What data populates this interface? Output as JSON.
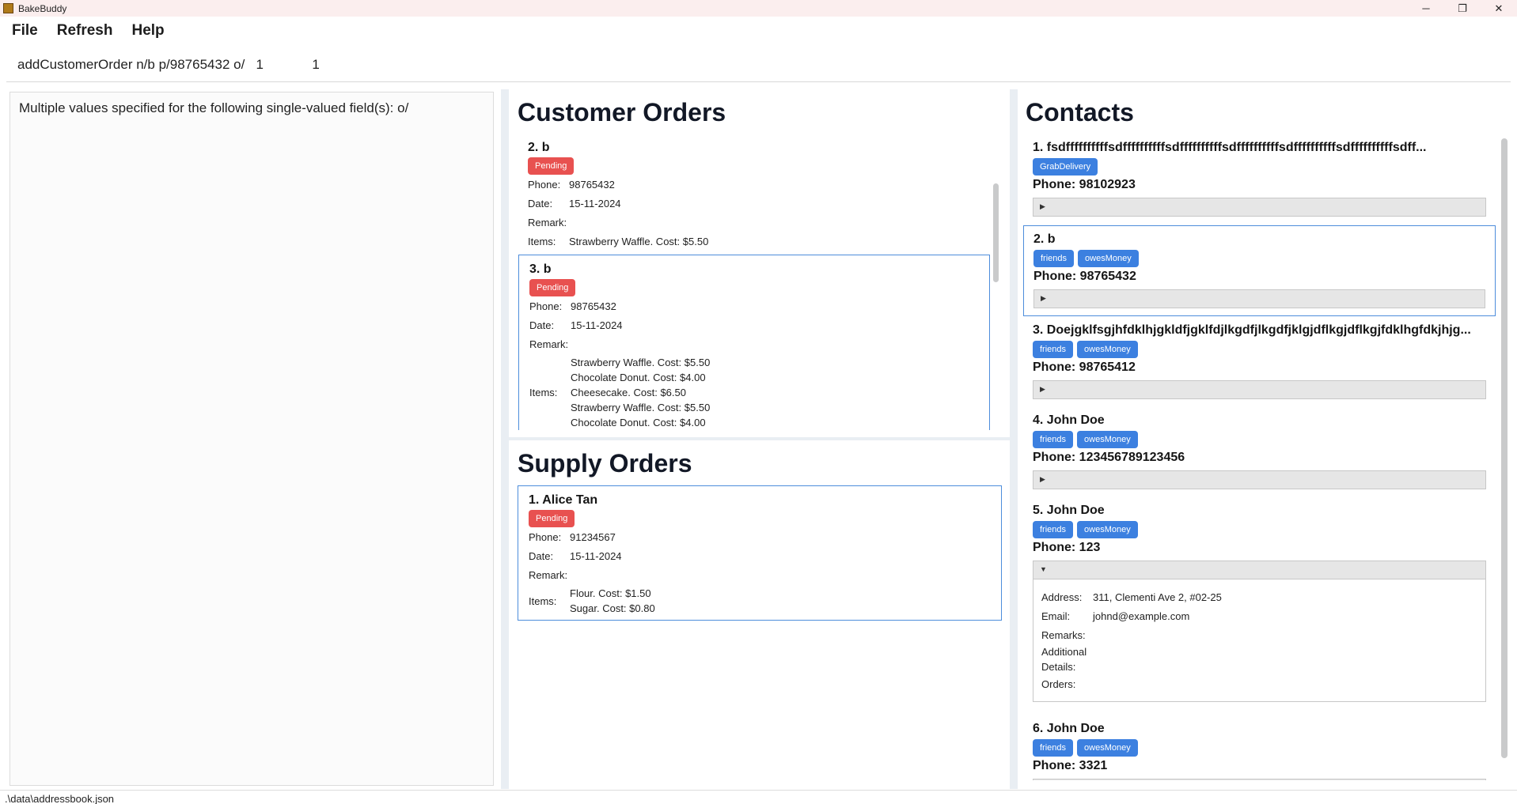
{
  "window": {
    "title": "BakeBuddy",
    "controls": {
      "minimize": "─",
      "maximize": "❐",
      "close": "✕"
    }
  },
  "menu": {
    "file": "File",
    "refresh": "Refresh",
    "help": "Help"
  },
  "command": {
    "value": "addCustomerOrder n/b p/98765432 o/   1             1"
  },
  "result": {
    "message": "Multiple values specified for the following single-valued field(s): o/"
  },
  "customer_orders": {
    "heading": "Customer Orders",
    "labels": {
      "phone": "Phone:",
      "date": "Date:",
      "remark": "Remark:",
      "items": "Items:"
    },
    "orders": [
      {
        "title": "2. b",
        "status": "Pending",
        "phone": "98765432",
        "date": "15-11-2024",
        "remark": "",
        "items": [
          "Strawberry Waffle. Cost: $5.50"
        ]
      },
      {
        "title": "3. b",
        "status": "Pending",
        "phone": "98765432",
        "date": "15-11-2024",
        "remark": "",
        "items": [
          "Strawberry Waffle. Cost: $5.50",
          "Chocolate Donut. Cost: $4.00",
          "Cheesecake. Cost: $6.50",
          "Strawberry Waffle. Cost: $5.50",
          "Chocolate Donut. Cost: $4.00"
        ]
      }
    ]
  },
  "supply_orders": {
    "heading": "Supply Orders",
    "orders": [
      {
        "title": "1. Alice Tan",
        "status": "Pending",
        "phone": "91234567",
        "date": "15-11-2024",
        "remark": "",
        "items": [
          "Flour. Cost: $1.50",
          "Sugar. Cost: $0.80"
        ]
      }
    ]
  },
  "contacts": {
    "heading": "Contacts",
    "detail_labels": {
      "address": "Address:",
      "email": "Email:",
      "remarks": "Remarks:",
      "additional": "Additional Details:",
      "orders": "Orders:"
    },
    "list": [
      {
        "name": "1. fsdffffffffffsdffffffffffsdffffffffffsdffffffffffsdffffffffffsdffffffffffsdff...",
        "tags": [
          "GrabDelivery"
        ],
        "phone": "Phone: 98102923"
      },
      {
        "name": "2. b",
        "tags": [
          "friends",
          "owesMoney"
        ],
        "phone": "Phone: 98765432"
      },
      {
        "name": "3. Doejgklfsgjhfdklhjgkldfjgklfdjlkgdfjlkgdfjklgjdflkgjdflkgjfdklhgfdkjhjg...",
        "tags": [
          "friends",
          "owesMoney"
        ],
        "phone": "Phone: 98765412"
      },
      {
        "name": "4. John Doe",
        "tags": [
          "friends",
          "owesMoney"
        ],
        "phone": "Phone: 123456789123456"
      },
      {
        "name": "5. John Doe",
        "tags": [
          "friends",
          "owesMoney"
        ],
        "phone": "Phone: 123",
        "details": {
          "address": "311, Clementi Ave 2, #02-25",
          "email": "johnd@example.com",
          "remarks": "",
          "additional": "",
          "orders": ""
        }
      },
      {
        "name": "6. John Doe",
        "tags": [
          "friends",
          "owesMoney"
        ],
        "phone": "Phone: 3321"
      }
    ]
  },
  "status_bar": {
    "path": ".\\data\\addressbook.json"
  },
  "icons": {
    "expander_collapsed": "triangle-right-icon",
    "expander_expanded": "triangle-down-icon"
  }
}
